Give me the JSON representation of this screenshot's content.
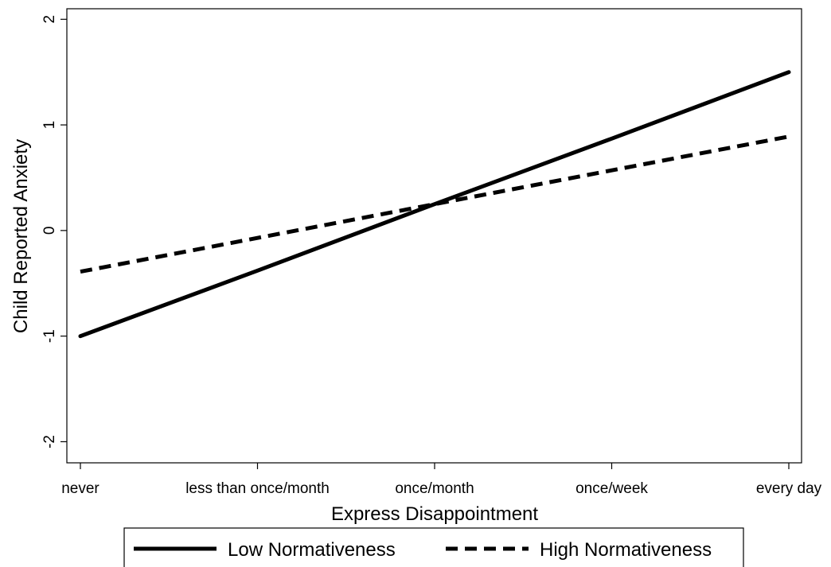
{
  "chart_data": {
    "type": "line",
    "title": "",
    "xlabel": "Express Disappointment",
    "ylabel": "Child Reported Anxiety",
    "categories": [
      "never",
      "less than once/month",
      "once/month",
      "once/week",
      "every day"
    ],
    "yticks": [
      -2,
      -1,
      0,
      1,
      2
    ],
    "ylim": [
      -2.2,
      2.1
    ],
    "grid": false,
    "legend_position": "bottom",
    "series": [
      {
        "name": "Low Normativeness",
        "style": "solid",
        "color": "#000000",
        "values": [
          -1.0,
          -0.38,
          0.25,
          0.87,
          1.5
        ]
      },
      {
        "name": "High Normativeness",
        "style": "dashed",
        "color": "#000000",
        "values": [
          -0.39,
          -0.07,
          0.25,
          0.57,
          0.89
        ]
      }
    ]
  }
}
